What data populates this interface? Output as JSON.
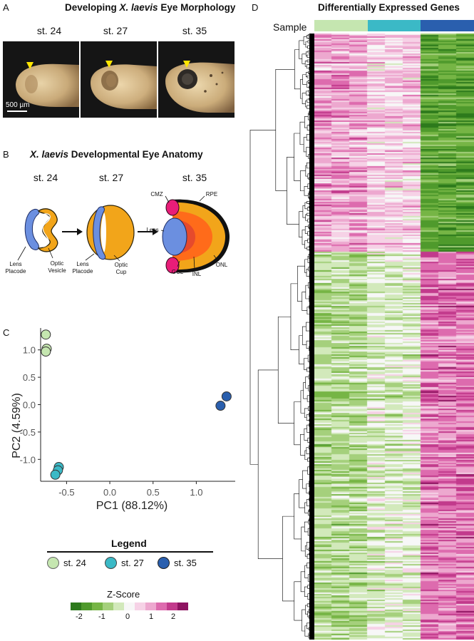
{
  "panels": {
    "a": {
      "letter": "A",
      "title_pre": "Developing ",
      "title_species": "X. laevis",
      "title_post": " Eye Morphology",
      "stages": [
        "st. 24",
        "st. 27",
        "st. 35"
      ],
      "scale_bar": "500 µm"
    },
    "b": {
      "letter": "B",
      "title_species": "X. laevis",
      "title_post": " Developmental Eye Anatomy",
      "stages": [
        "st. 24",
        "st. 27",
        "st. 35"
      ],
      "labels": {
        "lens_placode_1": "Lens\nPlacode",
        "optic_vesicle": "Optic\nVesicle",
        "lens_placode_2": "Lens\nPlacode",
        "optic_cup": "Optic\nCup",
        "cmz": "CMZ",
        "rpe": "RPE",
        "lens": "Lens",
        "gcl": "GCL",
        "inl": "INL",
        "onl": "ONL"
      }
    },
    "c": {
      "letter": "C",
      "legend_title": "Legend",
      "legend": [
        {
          "label": "st. 24",
          "color": "#c5e6b0"
        },
        {
          "label": "st. 27",
          "color": "#3bb9c6"
        },
        {
          "label": "st. 35",
          "color": "#2a5fae"
        }
      ],
      "zscore_title": "Z-Score",
      "zscore_ticks": [
        "-2",
        "-1",
        "0",
        "1",
        "2"
      ],
      "zscore_colors": [
        "#2d7a1c",
        "#4f9a2c",
        "#76b545",
        "#a5d07c",
        "#d2e9bb",
        "#f7f7f7",
        "#f6d2e6",
        "#eda8cf",
        "#dd6bae",
        "#c23a8c",
        "#8e1361"
      ]
    },
    "d": {
      "letter": "D",
      "title": "Differentially Expressed Genes",
      "sample_label": "Sample",
      "sample_colors": [
        "#c5e6b0",
        "#3bb9c6",
        "#2a5fae"
      ]
    }
  },
  "chart_data": {
    "type": "scatter",
    "title": "",
    "xlabel": "PC1 (88.12%)",
    "ylabel": "PC2 (4.59%)",
    "xlim": [
      -0.8,
      1.45
    ],
    "ylim": [
      -1.4,
      1.4
    ],
    "xticks": [
      "-0.5",
      "0.0",
      "0.5",
      "1.0"
    ],
    "xtick_values": [
      -0.5,
      0.0,
      0.5,
      1.0
    ],
    "yticks": [
      "1.0",
      "0.5",
      "0.0",
      "-0.5",
      "-1.0"
    ],
    "ytick_values": [
      1.0,
      0.5,
      0.0,
      -0.5,
      -1.0
    ],
    "series": [
      {
        "name": "st. 24",
        "color": "#c5e6b0",
        "points": [
          [
            -0.74,
            1.28
          ],
          [
            -0.73,
            1.02
          ],
          [
            -0.74,
            0.97
          ]
        ]
      },
      {
        "name": "st. 27",
        "color": "#3bb9c6",
        "points": [
          [
            -0.59,
            -1.14
          ],
          [
            -0.6,
            -1.2
          ],
          [
            -0.63,
            -1.28
          ]
        ]
      },
      {
        "name": "st. 35",
        "color": "#2a5fae",
        "points": [
          [
            1.28,
            -0.02
          ],
          [
            1.35,
            0.15
          ]
        ]
      }
    ]
  }
}
